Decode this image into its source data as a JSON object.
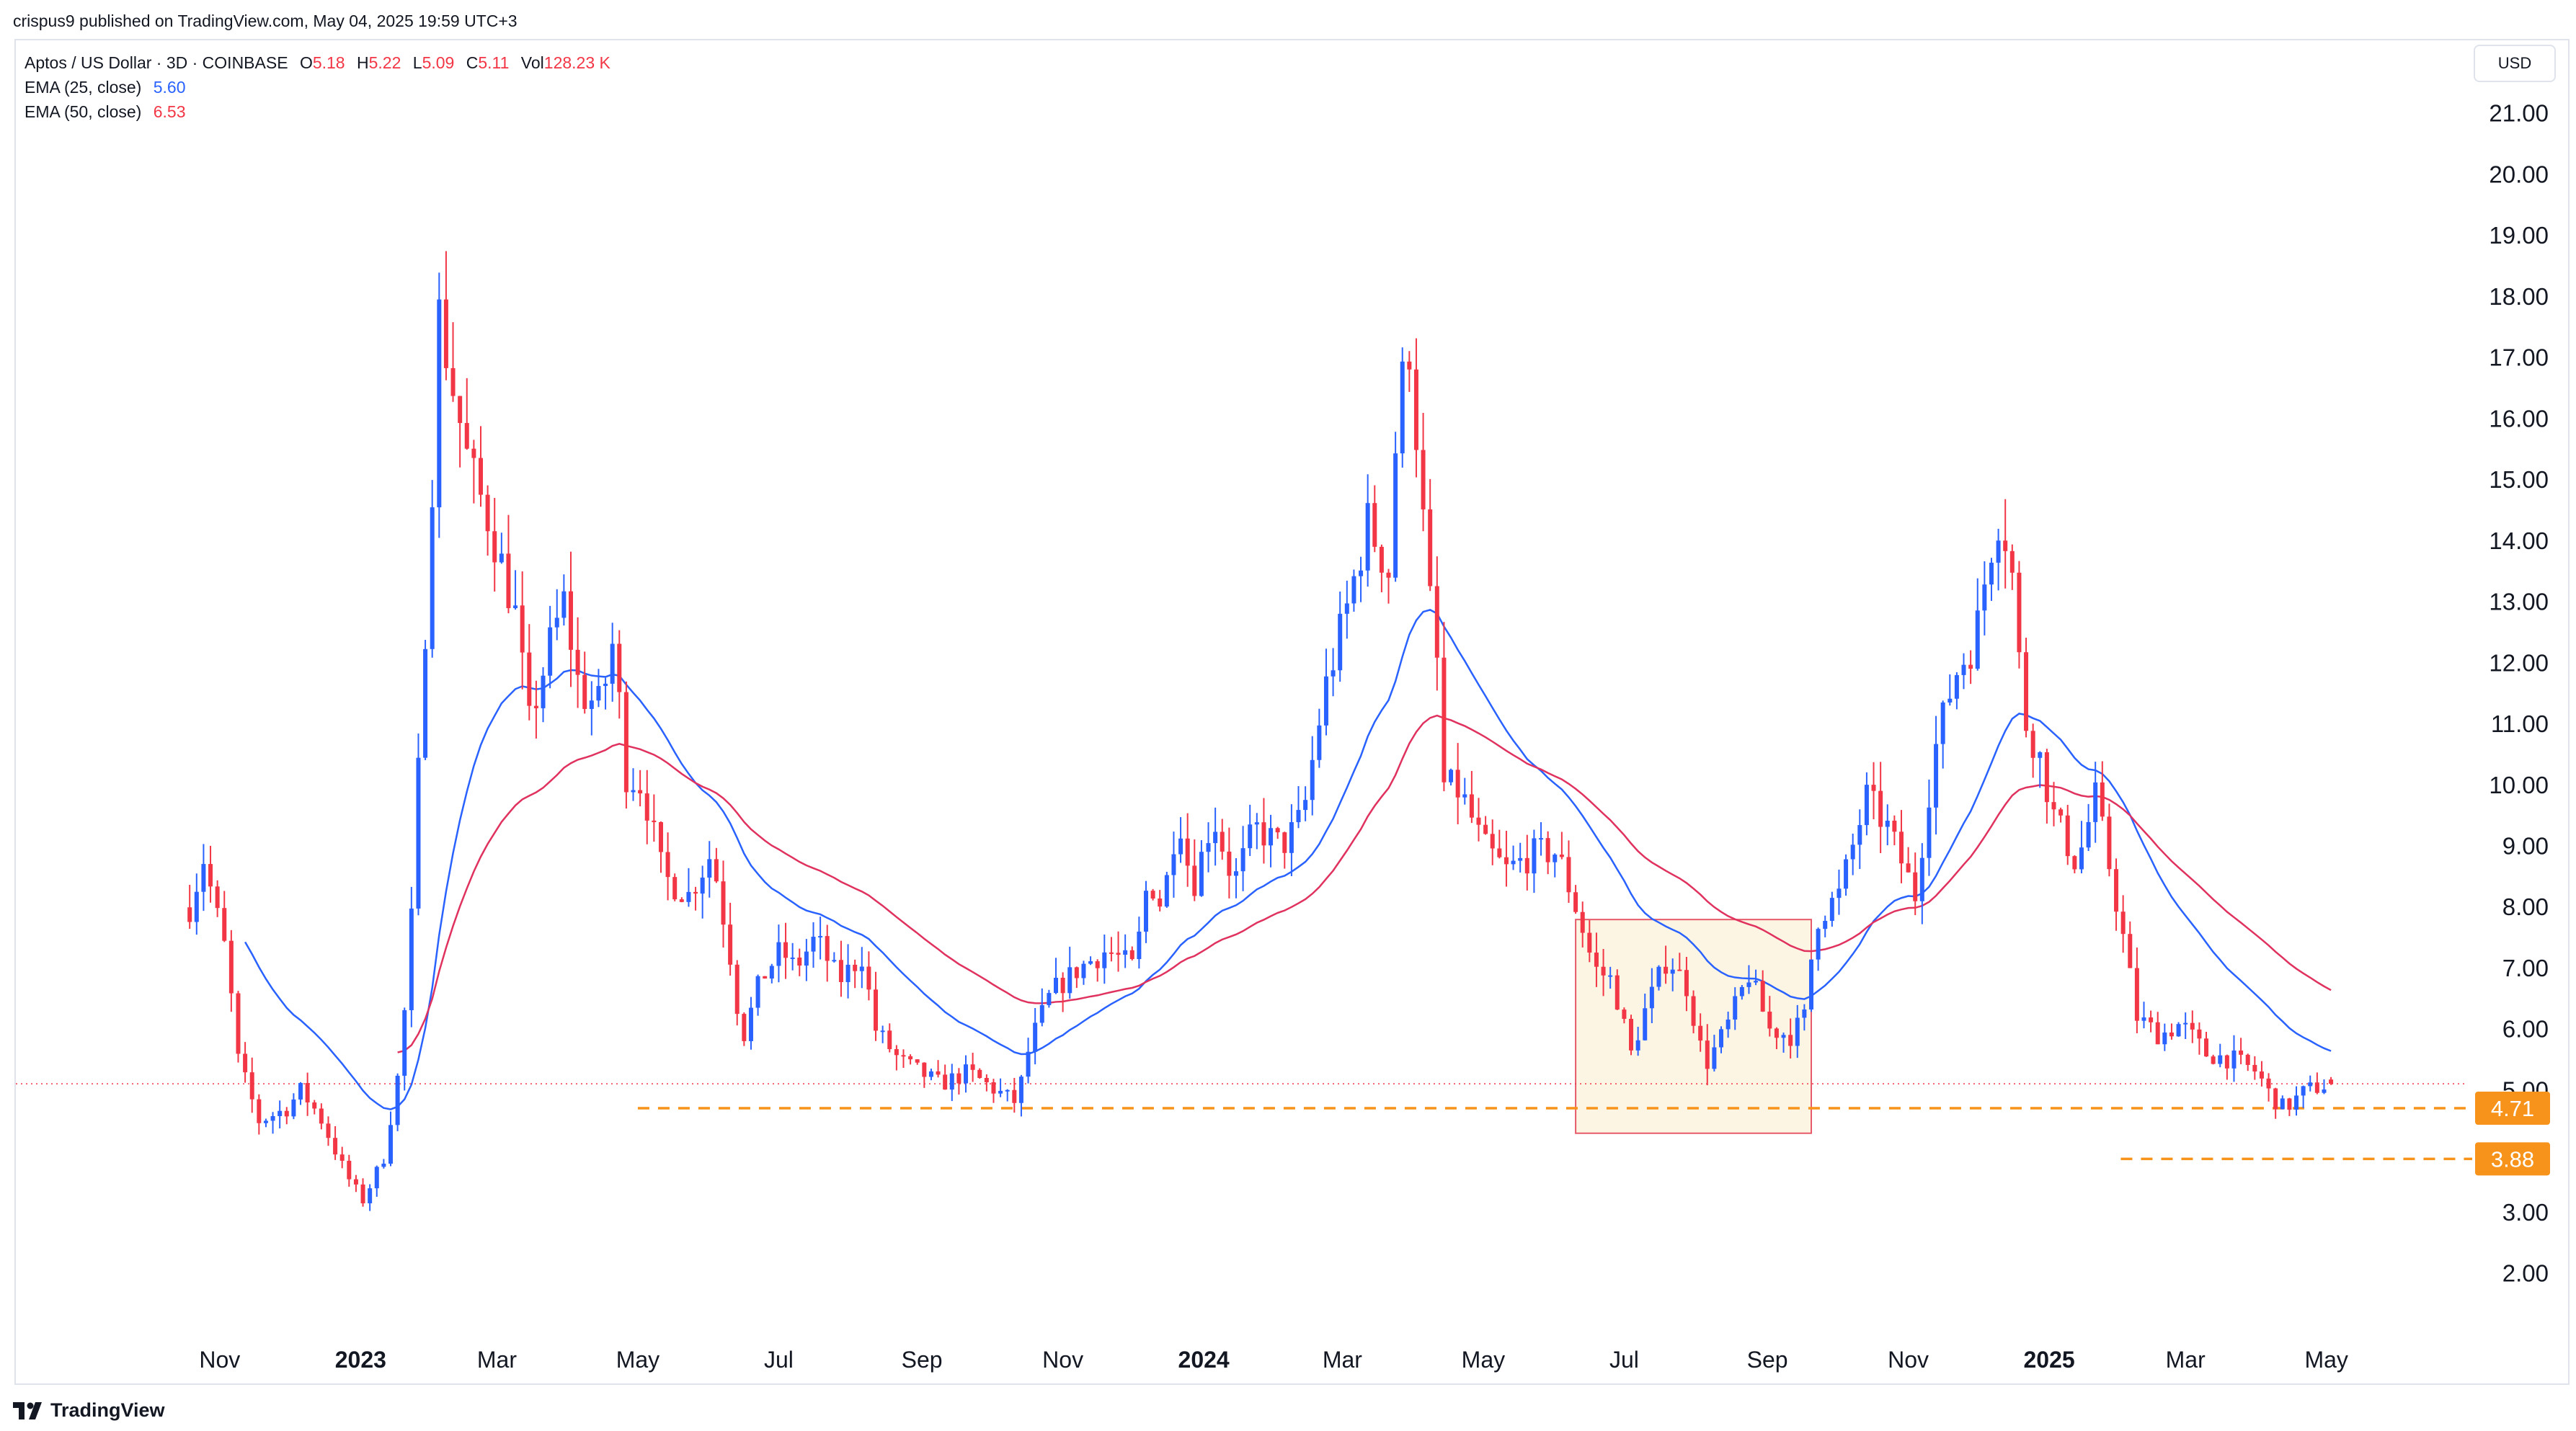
{
  "header": {
    "published_text": "crispus9 published on TradingView.com, May 04, 2025 19:59 UTC+3"
  },
  "legend": {
    "symbol": "Aptos / US Dollar · 3D · COINBASE",
    "o_label": "O",
    "o_value": "5.18",
    "h_label": "H",
    "h_value": "5.22",
    "l_label": "L",
    "l_value": "5.09",
    "c_label": "C",
    "c_value": "5.11",
    "vol_label": "Vol",
    "vol_value": "128.23 K",
    "ema25_label": "EMA (25, close)",
    "ema25_value": "5.60",
    "ema50_label": "EMA (50, close)",
    "ema50_value": "6.53"
  },
  "currency_button": "USD",
  "brand": {
    "name": "TradingView"
  },
  "colors": {
    "up": "#2962ff",
    "down": "#f23645",
    "ema25": "#2962ff",
    "ema50": "#e0325f",
    "support": "#f7931a",
    "box_fill": "#fdf5e3",
    "box_border": "#e65a6a"
  },
  "chart_data": {
    "type": "candlestick",
    "symbol": "Aptos / US Dollar",
    "interval": "3D",
    "exchange": "COINBASE",
    "ylim": [
      1.5,
      22.2
    ],
    "y_ticks": [
      "21.00",
      "20.00",
      "19.00",
      "18.00",
      "17.00",
      "16.00",
      "15.00",
      "14.00",
      "13.00",
      "12.00",
      "11.00",
      "10.00",
      "9.00",
      "8.00",
      "7.00",
      "6.00",
      "5.00",
      "3.00",
      "2.00"
    ],
    "x_tick_labels": [
      {
        "label": "Nov",
        "date": "2022-11-01",
        "bold": false
      },
      {
        "label": "2023",
        "date": "2023-01-01",
        "bold": true
      },
      {
        "label": "Mar",
        "date": "2023-03-01",
        "bold": false
      },
      {
        "label": "May",
        "date": "2023-05-01",
        "bold": false
      },
      {
        "label": "Jul",
        "date": "2023-07-01",
        "bold": false
      },
      {
        "label": "Sep",
        "date": "2023-09-01",
        "bold": false
      },
      {
        "label": "Nov",
        "date": "2023-11-01",
        "bold": false
      },
      {
        "label": "2024",
        "date": "2024-01-01",
        "bold": true
      },
      {
        "label": "Mar",
        "date": "2024-03-01",
        "bold": false
      },
      {
        "label": "May",
        "date": "2024-05-01",
        "bold": false
      },
      {
        "label": "Jul",
        "date": "2024-07-01",
        "bold": false
      },
      {
        "label": "Sep",
        "date": "2024-09-01",
        "bold": false
      },
      {
        "label": "Nov",
        "date": "2024-11-01",
        "bold": false
      },
      {
        "label": "2025",
        "date": "2025-01-01",
        "bold": true
      },
      {
        "label": "Mar",
        "date": "2025-03-01",
        "bold": false
      },
      {
        "label": "May",
        "date": "2025-05-01",
        "bold": false
      }
    ],
    "first_date": "2022-10-19",
    "last_date": "2025-05-03",
    "price_anchors": [
      [
        "2022-10-19",
        8.0
      ],
      [
        "2022-10-25",
        8.8
      ],
      [
        "2022-11-04",
        7.2
      ],
      [
        "2022-11-09",
        5.5
      ],
      [
        "2022-11-18",
        4.5
      ],
      [
        "2022-11-30",
        4.7
      ],
      [
        "2022-12-06",
        5.0
      ],
      [
        "2022-12-14",
        4.6
      ],
      [
        "2022-12-26",
        3.6
      ],
      [
        "2023-01-02",
        3.2
      ],
      [
        "2023-01-11",
        3.9
      ],
      [
        "2023-01-17",
        5.2
      ],
      [
        "2023-01-22",
        7.0
      ],
      [
        "2023-01-28",
        11.8
      ],
      [
        "2023-02-01",
        15.0
      ],
      [
        "2023-02-04",
        17.7
      ],
      [
        "2023-02-10",
        16.5
      ],
      [
        "2023-02-17",
        15.2
      ],
      [
        "2023-02-26",
        14.3
      ],
      [
        "2023-03-09",
        12.8
      ],
      [
        "2023-03-15",
        11.0
      ],
      [
        "2023-03-24",
        12.3
      ],
      [
        "2023-03-30",
        13.0
      ],
      [
        "2023-04-06",
        11.5
      ],
      [
        "2023-04-15",
        11.3
      ],
      [
        "2023-04-21",
        12.5
      ],
      [
        "2023-04-25",
        10.2
      ],
      [
        "2023-05-03",
        10.0
      ],
      [
        "2023-05-12",
        8.5
      ],
      [
        "2023-05-23",
        8.2
      ],
      [
        "2023-06-02",
        8.9
      ],
      [
        "2023-06-11",
        7.0
      ],
      [
        "2023-06-15",
        5.8
      ],
      [
        "2023-06-23",
        6.8
      ],
      [
        "2023-07-02",
        7.3
      ],
      [
        "2023-07-08",
        7.0
      ],
      [
        "2023-07-17",
        7.5
      ],
      [
        "2023-07-27",
        6.8
      ],
      [
        "2023-08-06",
        7.2
      ],
      [
        "2023-08-12",
        6.0
      ],
      [
        "2023-08-22",
        5.5
      ],
      [
        "2023-08-31",
        5.3
      ],
      [
        "2023-09-09",
        5.1
      ],
      [
        "2023-09-21",
        5.3
      ],
      [
        "2023-10-03",
        5.0
      ],
      [
        "2023-10-12",
        4.8
      ],
      [
        "2023-10-18",
        5.8
      ],
      [
        "2023-10-27",
        6.6
      ],
      [
        "2023-11-08",
        7.0
      ],
      [
        "2023-11-20",
        7.3
      ],
      [
        "2023-12-02",
        7.0
      ],
      [
        "2023-12-08",
        8.5
      ],
      [
        "2023-12-14",
        8.0
      ],
      [
        "2023-12-21",
        9.6
      ],
      [
        "2023-12-27",
        8.3
      ],
      [
        "2024-01-05",
        9.5
      ],
      [
        "2024-01-14",
        8.4
      ],
      [
        "2024-01-23",
        9.3
      ],
      [
        "2024-02-04",
        9.0
      ],
      [
        "2024-02-13",
        9.5
      ],
      [
        "2024-02-22",
        11.5
      ],
      [
        "2024-03-03",
        12.9
      ],
      [
        "2024-03-12",
        14.3
      ],
      [
        "2024-03-21",
        13.5
      ],
      [
        "2024-03-25",
        16.2
      ],
      [
        "2024-03-30",
        17.2
      ],
      [
        "2024-04-03",
        15.3
      ],
      [
        "2024-04-07",
        13.3
      ],
      [
        "2024-04-11",
        12.0
      ],
      [
        "2024-04-14",
        10.0
      ],
      [
        "2024-04-21",
        9.9
      ],
      [
        "2024-05-01",
        9.0
      ],
      [
        "2024-05-11",
        8.6
      ],
      [
        "2024-05-24",
        8.9
      ],
      [
        "2024-06-02",
        8.9
      ],
      [
        "2024-06-11",
        7.9
      ],
      [
        "2024-06-18",
        7.0
      ],
      [
        "2024-06-26",
        6.8
      ],
      [
        "2024-07-04",
        5.6
      ],
      [
        "2024-07-10",
        6.3
      ],
      [
        "2024-07-20",
        7.2
      ],
      [
        "2024-07-28",
        6.7
      ],
      [
        "2024-08-05",
        5.4
      ],
      [
        "2024-08-14",
        6.0
      ],
      [
        "2024-08-24",
        6.9
      ],
      [
        "2024-09-02",
        6.0
      ],
      [
        "2024-09-11",
        5.9
      ],
      [
        "2024-09-17",
        6.2
      ],
      [
        "2024-09-22",
        7.8
      ],
      [
        "2024-10-02",
        8.2
      ],
      [
        "2024-10-14",
        9.8
      ],
      [
        "2024-10-23",
        9.3
      ],
      [
        "2024-11-04",
        8.2
      ],
      [
        "2024-11-12",
        10.5
      ],
      [
        "2024-11-21",
        11.8
      ],
      [
        "2024-11-30",
        12.4
      ],
      [
        "2024-12-06",
        13.8
      ],
      [
        "2024-12-10",
        14.4
      ],
      [
        "2024-12-15",
        13.9
      ],
      [
        "2024-12-21",
        11.1
      ],
      [
        "2024-12-27",
        10.6
      ],
      [
        "2025-01-03",
        9.5
      ],
      [
        "2025-01-13",
        8.7
      ],
      [
        "2025-01-21",
        9.8
      ],
      [
        "2025-01-28",
        8.5
      ],
      [
        "2025-02-03",
        7.3
      ],
      [
        "2025-02-08",
        6.2
      ],
      [
        "2025-02-18",
        5.9
      ],
      [
        "2025-02-27",
        6.1
      ],
      [
        "2025-03-10",
        5.6
      ],
      [
        "2025-03-22",
        5.5
      ],
      [
        "2025-04-01",
        5.3
      ],
      [
        "2025-04-07",
        4.9
      ],
      [
        "2025-04-13",
        4.7
      ],
      [
        "2025-04-22",
        5.0
      ],
      [
        "2025-05-03",
        5.11
      ]
    ],
    "last_bar": {
      "open": 5.18,
      "high": 5.22,
      "low": 5.09,
      "close": 5.11
    },
    "series": [
      {
        "name": "EMA (25, close)",
        "value": 5.6,
        "color": "#2962ff"
      },
      {
        "name": "EMA (50, close)",
        "value": 6.53,
        "color": "#e0325f"
      }
    ],
    "last_price_line": 5.11,
    "support_lines": [
      {
        "value": 4.71,
        "label": "4.71",
        "from": "2023-05-01",
        "to": "2025-05-03"
      },
      {
        "value": 3.88,
        "label": "3.88",
        "from": "2025-02-01",
        "to": "2025-05-03"
      }
    ],
    "highlight_box": {
      "from": "2024-06-10",
      "to": "2024-09-20",
      "low": 4.3,
      "high": 7.8
    }
  }
}
